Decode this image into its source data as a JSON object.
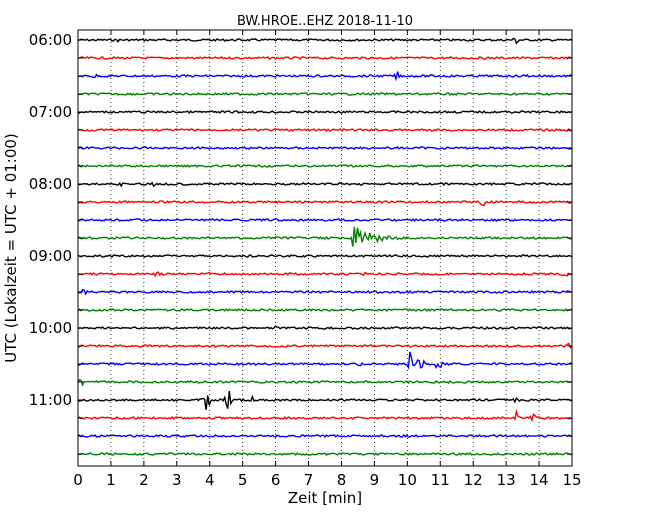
{
  "chart_data": {
    "type": "line",
    "title": "BW.HROE..EHZ 2018-11-10",
    "xlabel": "Zeit  [min]",
    "ylabel": "UTC (Lokalzeit = UTC + 01:00)",
    "xlim": [
      0,
      15
    ],
    "x_ticks": [
      "0",
      "1",
      "2",
      "3",
      "4",
      "5",
      "6",
      "7",
      "8",
      "9",
      "10",
      "11",
      "12",
      "13",
      "14",
      "15"
    ],
    "y_tick_labels": [
      "06:00",
      "07:00",
      "08:00",
      "09:00",
      "10:00",
      "11:00"
    ],
    "trace_interval_min": 15,
    "grid": "vertical dotted",
    "colors": [
      "#000000",
      "#ff0000",
      "#0000ff",
      "#008000"
    ],
    "traces": [
      {
        "start": "06:00",
        "color": "#000000",
        "events": [
          {
            "t": 1.2,
            "a": 2
          },
          {
            "t": 13.3,
            "a": 5
          }
        ]
      },
      {
        "start": "06:15",
        "color": "#ff0000",
        "events": []
      },
      {
        "start": "06:30",
        "color": "#0000ff",
        "events": [
          {
            "t": 0.5,
            "a": 3
          },
          {
            "t": 9.7,
            "a": 5
          },
          {
            "t": 13.6,
            "a": 3
          }
        ]
      },
      {
        "start": "06:45",
        "color": "#008000",
        "events": []
      },
      {
        "start": "07:00",
        "color": "#000000",
        "events": []
      },
      {
        "start": "07:15",
        "color": "#ff0000",
        "events": []
      },
      {
        "start": "07:30",
        "color": "#0000ff",
        "events": []
      },
      {
        "start": "07:45",
        "color": "#008000",
        "events": []
      },
      {
        "start": "08:00",
        "color": "#000000",
        "events": [
          {
            "t": 1.3,
            "a": 3
          },
          {
            "t": 2.3,
            "a": 3
          }
        ]
      },
      {
        "start": "08:15",
        "color": "#ff0000",
        "events": [
          {
            "t": 12.3,
            "a": 4
          }
        ]
      },
      {
        "start": "08:30",
        "color": "#0000ff",
        "events": []
      },
      {
        "start": "08:45",
        "color": "#008000",
        "events": [
          {
            "t": 8.3,
            "a": 14,
            "decay": true
          }
        ]
      },
      {
        "start": "09:00",
        "color": "#000000",
        "events": []
      },
      {
        "start": "09:15",
        "color": "#ff0000",
        "events": [
          {
            "t": 2.4,
            "a": 3
          },
          {
            "t": 4.0,
            "a": 3
          },
          {
            "t": 6.5,
            "a": 3
          },
          {
            "t": 8.7,
            "a": 3
          },
          {
            "t": 14.8,
            "a": 5
          }
        ]
      },
      {
        "start": "09:30",
        "color": "#0000ff",
        "events": [
          {
            "t": 0.2,
            "a": 5
          }
        ]
      },
      {
        "start": "09:45",
        "color": "#008000",
        "events": []
      },
      {
        "start": "10:00",
        "color": "#000000",
        "events": [
          {
            "t": 6.0,
            "a": 2
          }
        ]
      },
      {
        "start": "10:15",
        "color": "#ff0000",
        "events": [
          {
            "t": 14.9,
            "a": 3
          }
        ]
      },
      {
        "start": "10:30",
        "color": "#0000ff",
        "events": [
          {
            "t": 10.1,
            "a": 16
          },
          {
            "t": 10.4,
            "a": 14
          },
          {
            "t": 10.95,
            "a": 12
          },
          {
            "t": 8.6,
            "a": 3
          }
        ]
      },
      {
        "start": "10:45",
        "color": "#008000",
        "events": [
          {
            "t": 0.1,
            "a": 4
          }
        ]
      },
      {
        "start": "11:00",
        "color": "#000000",
        "events": [
          {
            "t": 3.9,
            "a": 15
          },
          {
            "t": 4.55,
            "a": 12
          },
          {
            "t": 5.3,
            "a": 4
          },
          {
            "t": 10.5,
            "a": 3
          },
          {
            "t": 13.3,
            "a": 6
          }
        ]
      },
      {
        "start": "11:15",
        "color": "#ff0000",
        "events": [
          {
            "t": 13.3,
            "a": 7
          },
          {
            "t": 13.8,
            "a": 6
          }
        ]
      },
      {
        "start": "11:30",
        "color": "#0000ff",
        "events": []
      },
      {
        "start": "11:45",
        "color": "#008000",
        "events": []
      }
    ]
  }
}
